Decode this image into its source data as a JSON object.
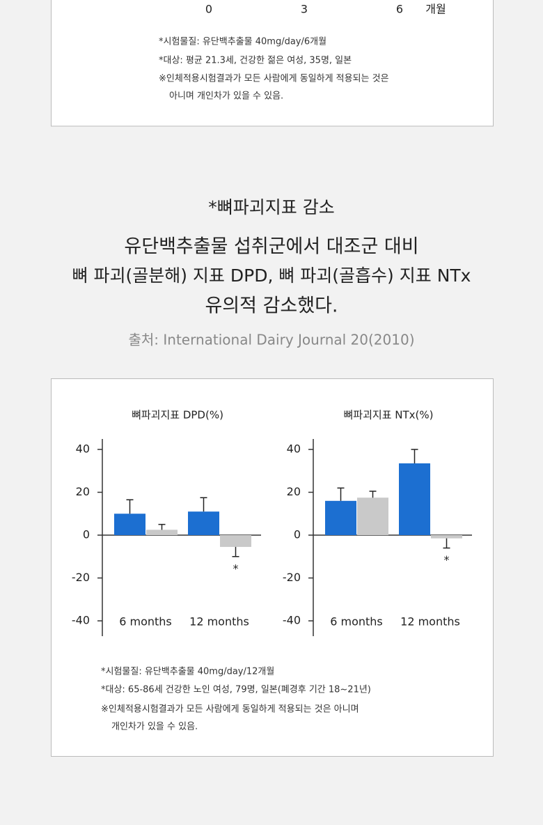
{
  "top_box": {
    "x_labels": [
      "0",
      "3",
      "6"
    ],
    "x_unit": "개월",
    "notes": [
      "*시험물질: 유단백추출물 40mg/day/6개월",
      "*대상: 평균 21.3세, 건강한 젊은 여성, 35명, 일본",
      "※인체적용시험결과가 모든 사람에게 동일하게 적용되는 것은",
      "아니며 개인차가 있을 수 있음."
    ]
  },
  "headline": {
    "title": "*뼈파괴지표 감소",
    "lines": [
      "유단백추출물 섭취군에서 대조군 대비",
      "뼈 파괴(골분해) 지표 DPD, 뼈 파괴(골흡수) 지표 NTx",
      "유의적 감소했다."
    ],
    "source": "출처: International Dairy Journal 20(2010)"
  },
  "chart_data": [
    {
      "type": "bar",
      "title": "뼈파괴지표 DPD(%)",
      "categories": [
        "6 months",
        "12 months"
      ],
      "series": [
        {
          "color": "#1c6fd1",
          "values": [
            10,
            11
          ],
          "errors": [
            6.5,
            6.5
          ]
        },
        {
          "color": "#c9c9c9",
          "values": [
            2.5,
            -5.5
          ],
          "errors": [
            2.5,
            4.5
          ],
          "labels": [
            null,
            "*"
          ]
        }
      ],
      "ylim": [
        -40,
        40
      ],
      "yticks": [
        -40,
        -20,
        0,
        20,
        40
      ]
    },
    {
      "type": "bar",
      "title": "뼈파괴지표 NTx(%)",
      "categories": [
        "6 months",
        "12 months"
      ],
      "series": [
        {
          "color": "#1c6fd1",
          "values": [
            16,
            33.5
          ],
          "errors": [
            6,
            6.5
          ]
        },
        {
          "color": "#c9c9c9",
          "values": [
            17.5,
            -1.5
          ],
          "errors": [
            3,
            4.5
          ],
          "labels": [
            null,
            "*"
          ]
        }
      ],
      "ylim": [
        -40,
        40
      ],
      "yticks": [
        -40,
        -20,
        0,
        20,
        40
      ]
    }
  ],
  "footnotes": [
    "*시험물질: 유단백추출물 40mg/day/12개월",
    "*대상: 65-86세 건강한 노인 여성, 79명, 일본(폐경후 기간 18~21년)",
    "※인체적용시험결과가 모든 사람에게 동일하게 적용되는 것은 아니며",
    "개인차가 있을 수 있음."
  ]
}
